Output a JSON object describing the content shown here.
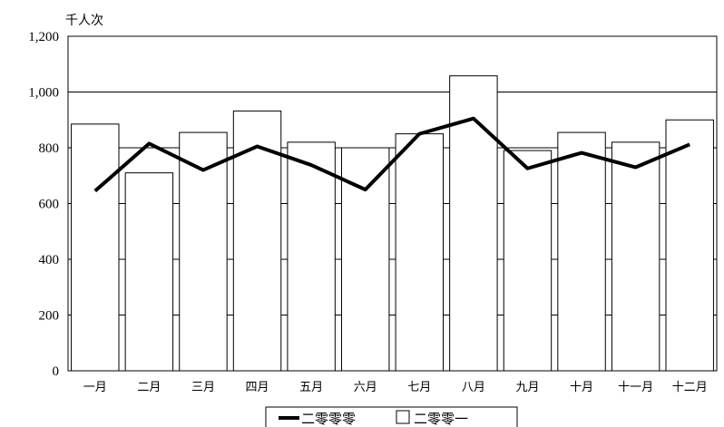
{
  "chart_data": {
    "type": "bar",
    "title": "",
    "ylabel": "千人次",
    "xlabel": "",
    "categories": [
      "一月",
      "二月",
      "三月",
      "四月",
      "五月",
      "六月",
      "七月",
      "八月",
      "九月",
      "十月",
      "十一月",
      "十二月"
    ],
    "series": [
      {
        "name": "二零零一",
        "type": "bar",
        "values": [
          885,
          710,
          855,
          932,
          820,
          800,
          850,
          1058,
          790,
          855,
          820,
          900
        ],
        "color": "#ffffff",
        "stroke": "#000000"
      },
      {
        "name": "二零零零",
        "type": "line",
        "values": [
          645,
          815,
          720,
          805,
          738,
          650,
          850,
          905,
          726,
          782,
          730,
          812
        ],
        "color": "#000000"
      }
    ],
    "ylim": [
      0,
      1200
    ],
    "yticks": [
      "0",
      "200",
      "400",
      "600",
      "800",
      "1,000",
      "1,200"
    ],
    "gridlines": true,
    "legend_position": "bottom"
  }
}
